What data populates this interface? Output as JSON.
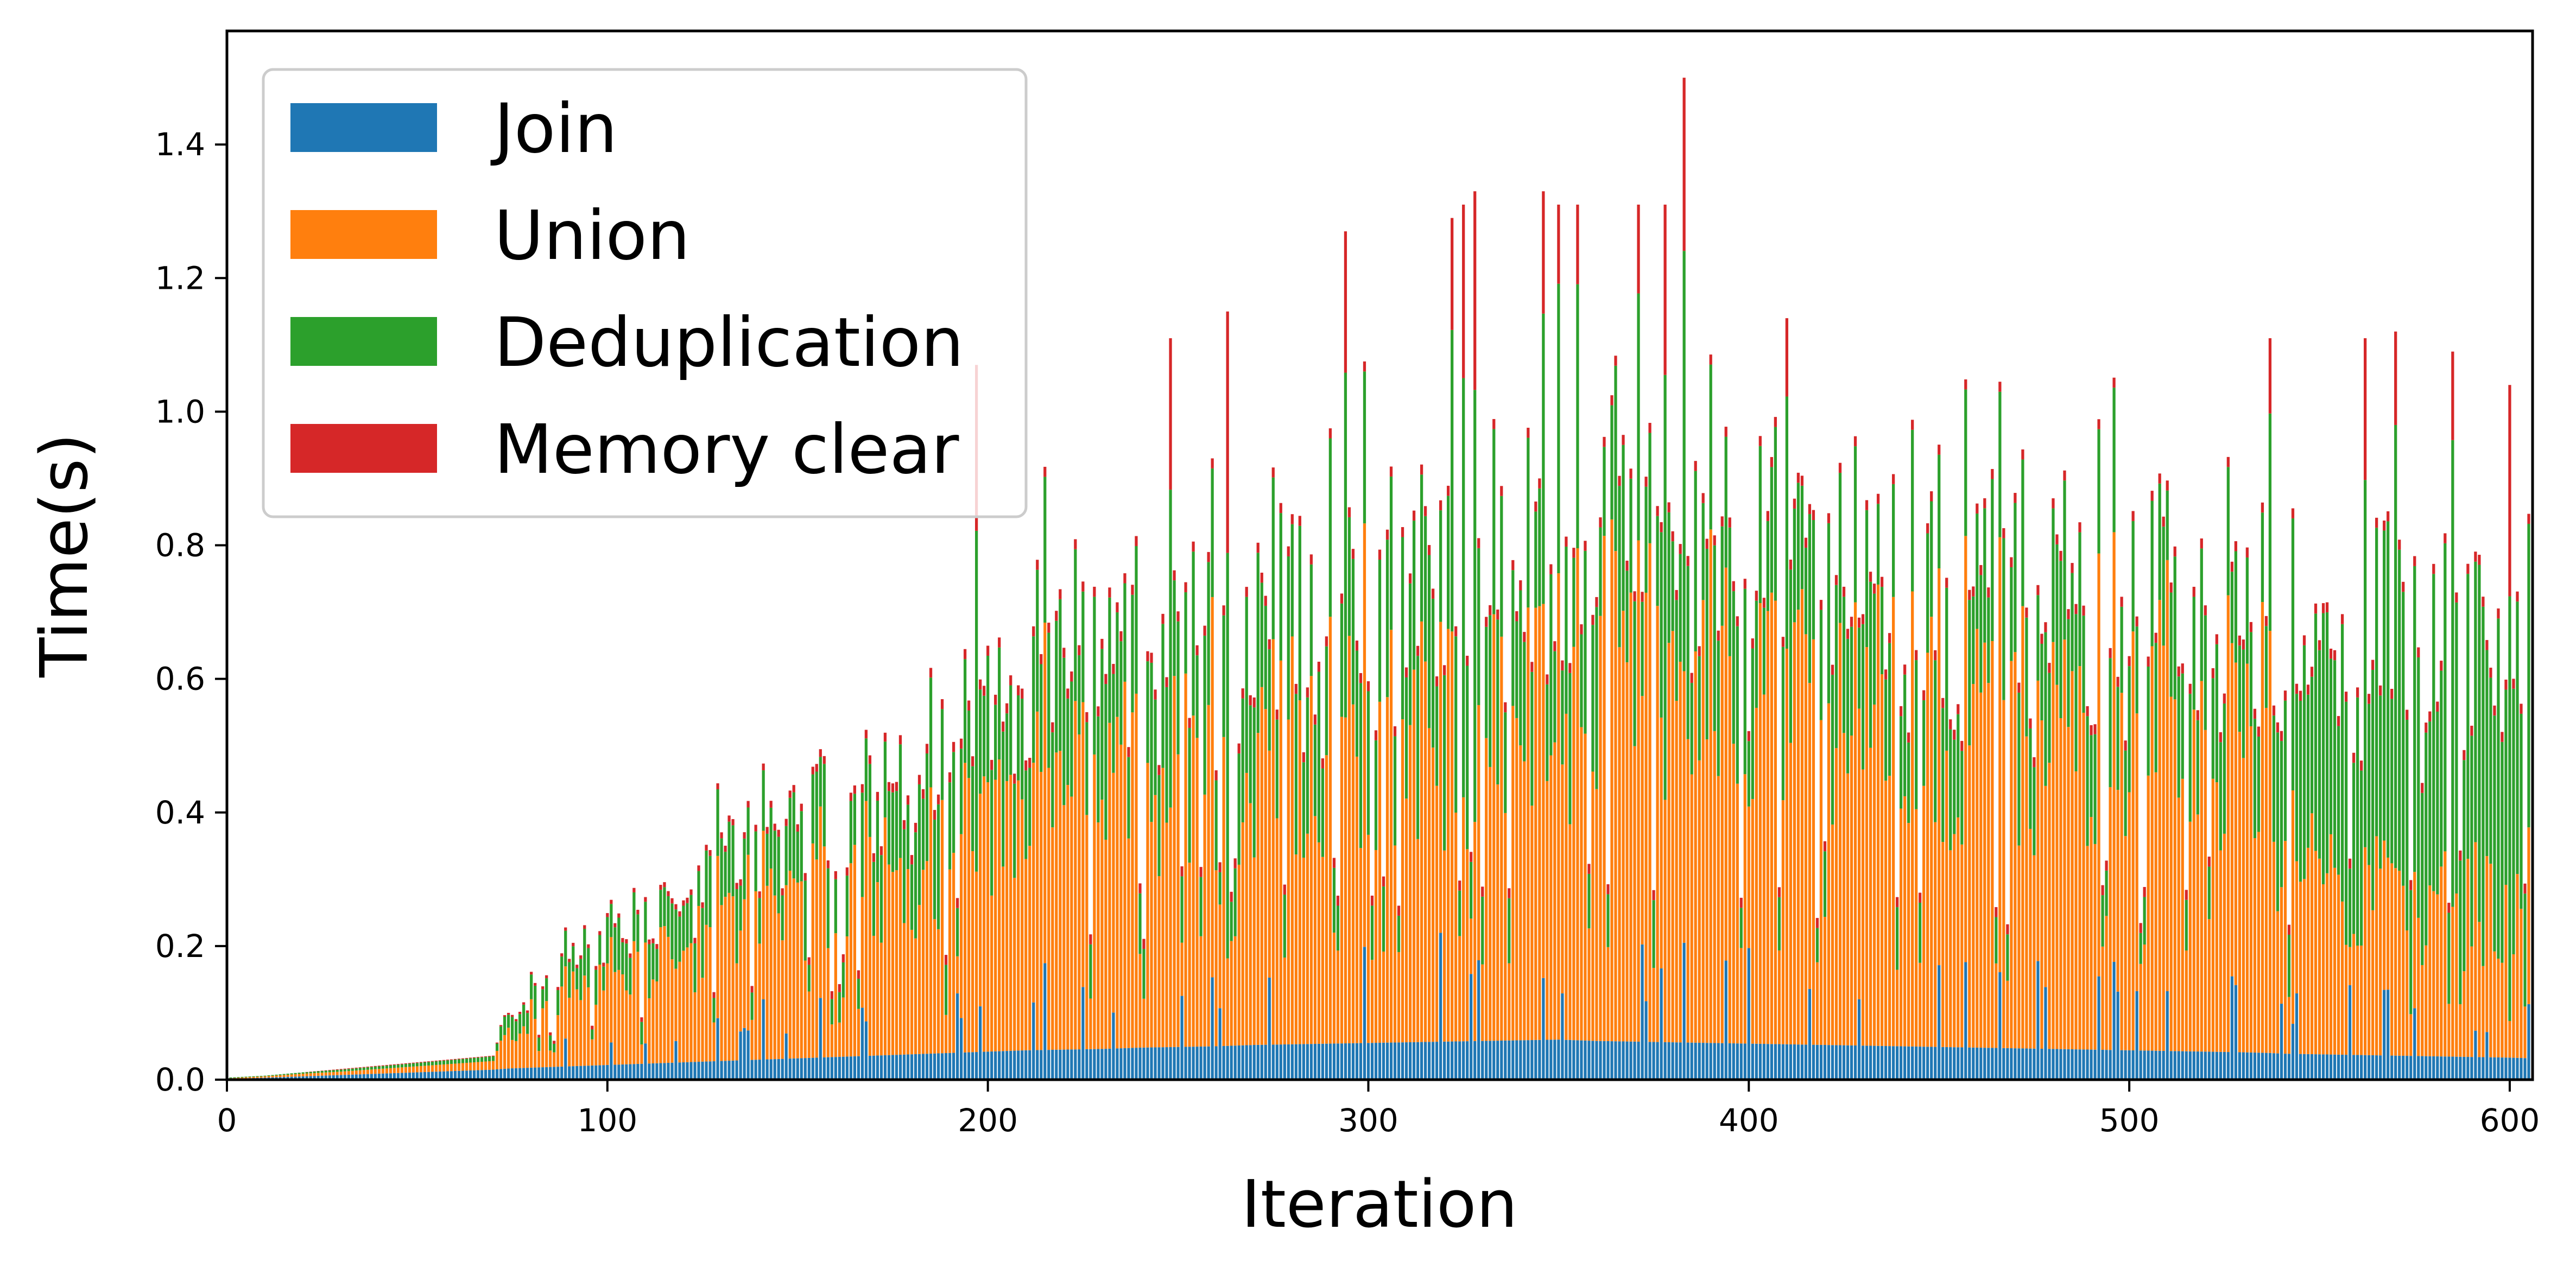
{
  "chart_data": {
    "type": "bar",
    "stacked": true,
    "xlabel": "Iteration",
    "ylabel": "Time(s)",
    "xlim": [
      0,
      606
    ],
    "ylim": [
      0,
      1.57
    ],
    "x_ticks": [
      "0",
      "100",
      "200",
      "300",
      "400",
      "500",
      "600"
    ],
    "y_ticks": [
      "0.0",
      "0.2",
      "0.4",
      "0.6",
      "0.8",
      "1.0",
      "1.2",
      "1.4"
    ],
    "x_tick_values": [
      0,
      100,
      200,
      300,
      400,
      500,
      600
    ],
    "y_tick_values": [
      0.0,
      0.2,
      0.4,
      0.6,
      0.8,
      1.0,
      1.2,
      1.4
    ],
    "legend_position": "top-left",
    "legend": [
      {
        "name": "Join",
        "color": "#1f77b4"
      },
      {
        "name": "Union",
        "color": "#ff7f0e"
      },
      {
        "name": "Deduplication",
        "color": "#2ca02c"
      },
      {
        "name": "Memory clear",
        "color": "#d62728"
      }
    ],
    "profile": {
      "description_note": "",
      "x": [
        0,
        10,
        20,
        30,
        40,
        50,
        60,
        70,
        72,
        75,
        80,
        90,
        100,
        110,
        120,
        130,
        140,
        150,
        160,
        170,
        180,
        190,
        200,
        210,
        220,
        230,
        240,
        250,
        260,
        270,
        280,
        290,
        300,
        310,
        320,
        330,
        340,
        350,
        360,
        370,
        380,
        390,
        400,
        410,
        420,
        430,
        440,
        450,
        460,
        470,
        480,
        490,
        500,
        510,
        520,
        530,
        537,
        540,
        550,
        560,
        570,
        580,
        590,
        600,
        606
      ],
      "join": [
        0.001,
        0.003,
        0.005,
        0.007,
        0.009,
        0.011,
        0.013,
        0.015,
        0.016,
        0.017,
        0.018,
        0.02,
        0.022,
        0.024,
        0.026,
        0.028,
        0.03,
        0.032,
        0.034,
        0.036,
        0.038,
        0.04,
        0.042,
        0.044,
        0.045,
        0.046,
        0.048,
        0.049,
        0.05,
        0.052,
        0.053,
        0.054,
        0.055,
        0.056,
        0.057,
        0.058,
        0.059,
        0.06,
        0.058,
        0.057,
        0.056,
        0.055,
        0.054,
        0.053,
        0.052,
        0.051,
        0.05,
        0.049,
        0.048,
        0.047,
        0.046,
        0.045,
        0.044,
        0.043,
        0.042,
        0.041,
        0.04,
        0.039,
        0.038,
        0.037,
        0.036,
        0.035,
        0.034,
        0.033,
        0.032
      ],
      "union": [
        0.001,
        0.002,
        0.004,
        0.005,
        0.007,
        0.009,
        0.011,
        0.013,
        0.04,
        0.06,
        0.08,
        0.11,
        0.13,
        0.15,
        0.17,
        0.2,
        0.22,
        0.25,
        0.27,
        0.29,
        0.31,
        0.33,
        0.35,
        0.38,
        0.42,
        0.43,
        0.44,
        0.46,
        0.47,
        0.48,
        0.49,
        0.5,
        0.5,
        0.5,
        0.5,
        0.5,
        0.5,
        0.55,
        0.62,
        0.64,
        0.63,
        0.6,
        0.58,
        0.56,
        0.55,
        0.54,
        0.53,
        0.53,
        0.52,
        0.52,
        0.52,
        0.53,
        0.53,
        0.54,
        0.54,
        0.53,
        0.52,
        0.3,
        0.28,
        0.26,
        0.25,
        0.24,
        0.23,
        0.22,
        0.22
      ],
      "dedup": [
        0.001,
        0.001,
        0.002,
        0.003,
        0.004,
        0.005,
        0.006,
        0.007,
        0.02,
        0.03,
        0.04,
        0.05,
        0.06,
        0.07,
        0.08,
        0.09,
        0.1,
        0.11,
        0.12,
        0.13,
        0.14,
        0.15,
        0.16,
        0.17,
        0.18,
        0.19,
        0.2,
        0.2,
        0.2,
        0.21,
        0.21,
        0.21,
        0.22,
        0.22,
        0.22,
        0.22,
        0.22,
        0.22,
        0.22,
        0.22,
        0.22,
        0.22,
        0.22,
        0.21,
        0.21,
        0.2,
        0.2,
        0.2,
        0.19,
        0.19,
        0.19,
        0.18,
        0.18,
        0.17,
        0.17,
        0.17,
        0.17,
        0.3,
        0.35,
        0.38,
        0.4,
        0.41,
        0.42,
        0.43,
        0.43
      ],
      "clear": [
        0.0,
        0.0,
        0.0,
        0.001,
        0.001,
        0.001,
        0.001,
        0.001,
        0.002,
        0.003,
        0.004,
        0.005,
        0.006,
        0.007,
        0.008,
        0.009,
        0.01,
        0.011,
        0.012,
        0.013,
        0.014,
        0.015,
        0.015,
        0.015,
        0.015,
        0.015,
        0.015,
        0.015,
        0.015,
        0.015,
        0.015,
        0.015,
        0.015,
        0.015,
        0.015,
        0.015,
        0.015,
        0.015,
        0.015,
        0.015,
        0.015,
        0.015,
        0.015,
        0.015,
        0.015,
        0.015,
        0.015,
        0.015,
        0.015,
        0.015,
        0.015,
        0.015,
        0.015,
        0.015,
        0.015,
        0.015,
        0.015,
        0.015,
        0.015,
        0.015,
        0.015,
        0.015,
        0.015,
        0.015,
        0.015
      ],
      "spikes": [
        {
          "x": 197,
          "total": 1.07
        },
        {
          "x": 248,
          "total": 1.11
        },
        {
          "x": 263,
          "total": 1.15
        },
        {
          "x": 294,
          "total": 1.27
        },
        {
          "x": 322,
          "total": 1.29
        },
        {
          "x": 325,
          "total": 1.31
        },
        {
          "x": 328,
          "total": 1.33
        },
        {
          "x": 346,
          "total": 1.33
        },
        {
          "x": 350,
          "total": 1.31
        },
        {
          "x": 355,
          "total": 1.31
        },
        {
          "x": 371,
          "total": 1.31
        },
        {
          "x": 378,
          "total": 1.31
        },
        {
          "x": 383,
          "total": 1.5
        },
        {
          "x": 410,
          "total": 1.14
        },
        {
          "x": 537,
          "total": 1.11
        },
        {
          "x": 562,
          "total": 1.11
        },
        {
          "x": 570,
          "total": 1.12
        },
        {
          "x": 585,
          "total": 1.09
        },
        {
          "x": 600,
          "total": 1.04
        }
      ]
    }
  }
}
